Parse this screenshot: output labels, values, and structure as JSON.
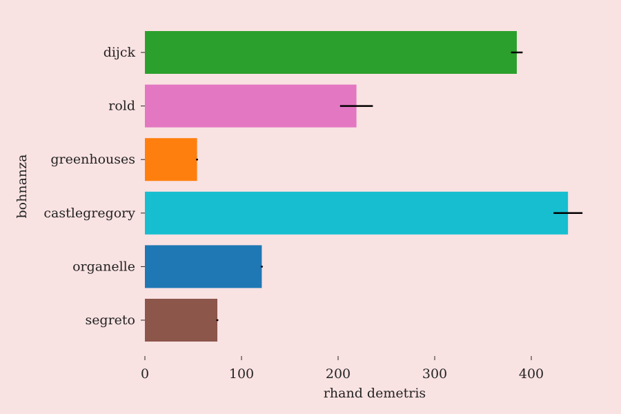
{
  "chart_data": {
    "type": "bar",
    "orientation": "horizontal",
    "xlabel": "rhand demetris",
    "ylabel": "bohnanza",
    "xlim": [
      0,
      480
    ],
    "xticks": [
      0,
      100,
      200,
      300,
      400
    ],
    "grid": false,
    "categories": [
      "dijck",
      "rold",
      "greenhouses",
      "castlegregory",
      "organelle",
      "segreto"
    ],
    "values": [
      385,
      219,
      54,
      438,
      121,
      75
    ],
    "errors": [
      6,
      17,
      1,
      15,
      1,
      1
    ],
    "colors": [
      "#2ca02c",
      "#e377c2",
      "#ff7f0e",
      "#17becf",
      "#1f77b4",
      "#8c564b"
    ]
  }
}
